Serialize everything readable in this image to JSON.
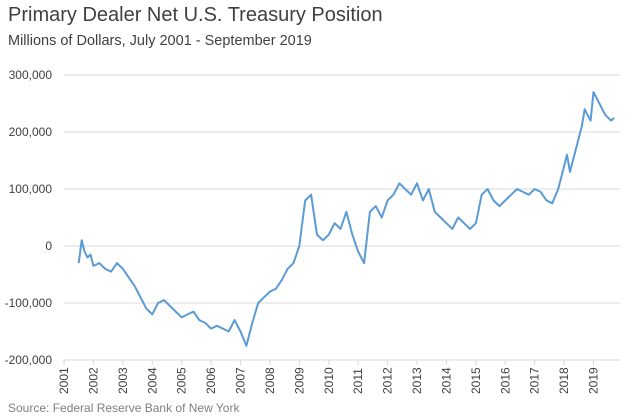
{
  "chart_data": {
    "type": "line",
    "title": "Primary Dealer Net U.S. Treasury Position",
    "subtitle": "Millions of Dollars, July 2001 - September  2019",
    "source": "Source: Federal Reserve Bank of New York",
    "xlabel": "",
    "ylabel": "",
    "ylim": [
      -200000,
      300000
    ],
    "y_ticks": [
      300000,
      200000,
      100000,
      0,
      -100000,
      -200000
    ],
    "y_tick_labels": [
      "300,000",
      "200,000",
      "100,000",
      "0",
      "-100,000",
      "-200,000"
    ],
    "x_tick_labels": [
      "2001",
      "2002",
      "2003",
      "2004",
      "2005",
      "2006",
      "2007",
      "2008",
      "2009",
      "2010",
      "2011",
      "2012",
      "2013",
      "2014",
      "2015",
      "2016",
      "2017",
      "2018",
      "2019"
    ],
    "grid": "horizontal",
    "legend": "none",
    "line_color": "#5b9bd5",
    "series": [
      {
        "x": [
          2001.5,
          2001.6,
          2001.7,
          2001.8,
          2001.9,
          2002.0,
          2002.2,
          2002.4,
          2002.6,
          2002.8,
          2003.0,
          2003.2,
          2003.4,
          2003.6,
          2003.8,
          2004.0,
          2004.2,
          2004.4,
          2004.6,
          2004.8,
          2005.0,
          2005.2,
          2005.4,
          2005.6,
          2005.8,
          2006.0,
          2006.2,
          2006.4,
          2006.6,
          2006.8,
          2007.0,
          2007.2,
          2007.4,
          2007.6,
          2007.8,
          2008.0,
          2008.2,
          2008.4,
          2008.6,
          2008.8,
          2009.0,
          2009.2,
          2009.4,
          2009.6,
          2009.8,
          2010.0,
          2010.2,
          2010.4,
          2010.6,
          2010.8,
          2011.0,
          2011.2,
          2011.4,
          2011.6,
          2011.8,
          2012.0,
          2012.2,
          2012.4,
          2012.6,
          2012.8,
          2013.0,
          2013.2,
          2013.4,
          2013.6,
          2013.8,
          2014.0,
          2014.2,
          2014.4,
          2014.6,
          2014.8,
          2015.0,
          2015.2,
          2015.4,
          2015.6,
          2015.8,
          2016.0,
          2016.2,
          2016.4,
          2016.6,
          2016.8,
          2017.0,
          2017.2,
          2017.4,
          2017.6,
          2017.8,
          2018.0,
          2018.1,
          2018.2,
          2018.3,
          2018.4,
          2018.5,
          2018.6,
          2018.7,
          2018.8,
          2018.9,
          2019.0,
          2019.1,
          2019.2,
          2019.3,
          2019.4,
          2019.5,
          2019.6,
          2019.7
        ],
        "values": [
          -30000,
          10000,
          -10000,
          -20000,
          -15000,
          -35000,
          -30000,
          -40000,
          -45000,
          -30000,
          -40000,
          -55000,
          -70000,
          -90000,
          -110000,
          -120000,
          -100000,
          -95000,
          -105000,
          -115000,
          -125000,
          -120000,
          -115000,
          -130000,
          -135000,
          -145000,
          -140000,
          -145000,
          -150000,
          -130000,
          -150000,
          -175000,
          -135000,
          -100000,
          -90000,
          -80000,
          -75000,
          -60000,
          -40000,
          -30000,
          0,
          80000,
          90000,
          20000,
          10000,
          20000,
          40000,
          30000,
          60000,
          20000,
          -10000,
          -30000,
          60000,
          70000,
          50000,
          80000,
          90000,
          110000,
          100000,
          90000,
          110000,
          80000,
          100000,
          60000,
          50000,
          40000,
          30000,
          50000,
          40000,
          30000,
          40000,
          90000,
          100000,
          80000,
          70000,
          80000,
          90000,
          100000,
          95000,
          90000,
          100000,
          95000,
          80000,
          75000,
          100000,
          140000,
          160000,
          130000,
          150000,
          170000,
          190000,
          210000,
          240000,
          230000,
          220000,
          270000,
          260000,
          250000,
          240000,
          230000,
          225000,
          220000,
          225000
        ]
      }
    ]
  }
}
